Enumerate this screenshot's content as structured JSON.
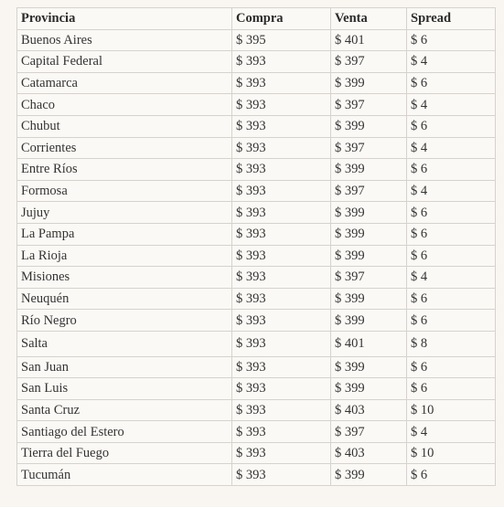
{
  "table": {
    "header": [
      "Provincia",
      "Compra",
      "Venta",
      "Spread"
    ],
    "rows": [
      [
        "Buenos Aires",
        "$ 395",
        "$ 401",
        "$ 6"
      ],
      [
        "Capital Federal",
        "$ 393",
        "$ 397",
        "$ 4"
      ],
      [
        "Catamarca",
        "$ 393",
        "$ 399",
        "$ 6"
      ],
      [
        "Chaco",
        "$ 393",
        "$ 397",
        "$ 4"
      ],
      [
        "Chubut",
        "$ 393",
        "$ 399",
        "$ 6"
      ],
      [
        "Corrientes",
        "$ 393",
        "$ 397",
        "$ 4"
      ],
      [
        "Entre Ríos",
        "$ 393",
        "$ 399",
        "$ 6"
      ],
      [
        "Formosa",
        "$ 393",
        "$ 397",
        "$ 4"
      ],
      [
        "Jujuy",
        "$ 393",
        "$ 399",
        "$ 6"
      ],
      [
        "La Pampa",
        "$ 393",
        "$ 399",
        "$ 6"
      ],
      [
        "La Rioja",
        "$ 393",
        "$ 399",
        "$ 6"
      ],
      [
        "Misiones",
        "$ 393",
        "$ 397",
        "$ 4"
      ],
      [
        "Neuquén",
        "$ 393",
        "$ 399",
        "$ 6"
      ],
      [
        "Río Negro",
        "$ 393",
        "$ 399",
        "$ 6"
      ],
      [
        "Salta",
        "$ 393",
        "$ 401",
        "$ 8"
      ],
      [
        "San Juan",
        "$ 393",
        "$ 399",
        "$ 6"
      ],
      [
        "San Luis",
        "$ 393",
        "$ 399",
        "$ 6"
      ],
      [
        "Santa Cruz",
        "$ 393",
        "$ 403",
        "$ 10"
      ],
      [
        "Santiago del Estero",
        "$ 393",
        "$ 397",
        "$ 4"
      ],
      [
        "Tierra del Fuego",
        "$ 393",
        "$ 403",
        "$ 10"
      ],
      [
        "Tucumán",
        "$ 393",
        "$ 399",
        "$ 6"
      ]
    ]
  }
}
